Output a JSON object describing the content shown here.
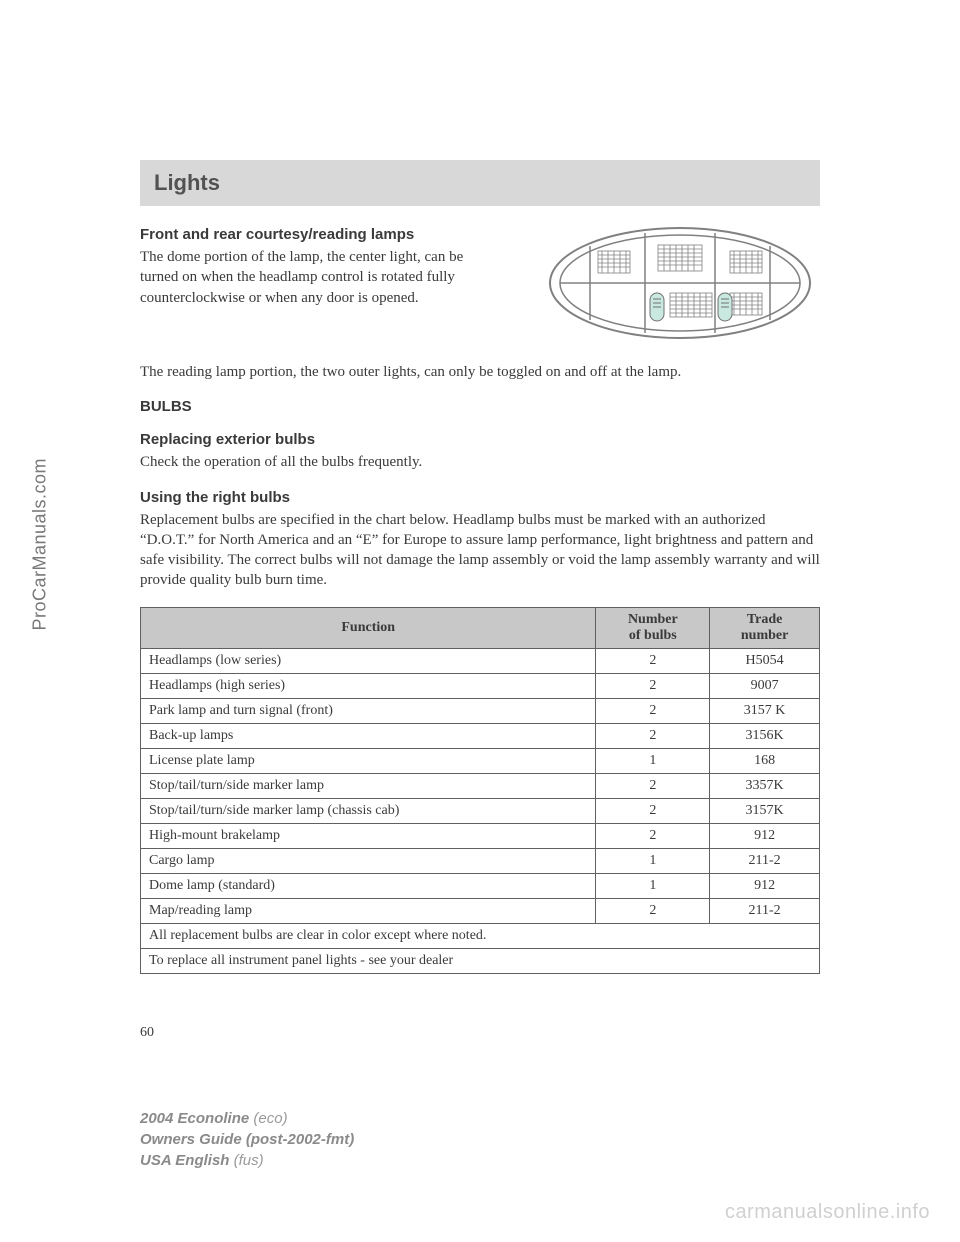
{
  "sidebar": {
    "watermark": "ProCarManuals.com"
  },
  "header": {
    "title": "Lights"
  },
  "section1": {
    "heading": "Front and rear courtesy/reading lamps",
    "para1": "The dome portion of the lamp, the center light, can be turned on when the headlamp control is rotated fully counterclockwise or when any door is opened.",
    "para2": "The reading lamp portion, the two outer lights, can only be toggled on and off at the lamp."
  },
  "section2": {
    "heading": "BULBS"
  },
  "section3": {
    "heading": "Replacing exterior bulbs",
    "para1": "Check the operation of all the bulbs frequently."
  },
  "section4": {
    "heading": "Using the right bulbs",
    "para1": "Replacement bulbs are specified in the chart below. Headlamp bulbs must be marked with an authorized “D.O.T.” for North America and an “E” for Europe to assure lamp performance, light brightness and pattern and safe visibility. The correct bulbs will not damage the lamp assembly or void the lamp assembly warranty and will provide quality bulb burn time."
  },
  "table": {
    "headers": {
      "col1": "Function",
      "col2_line1": "Number",
      "col2_line2": "of bulbs",
      "col3_line1": "Trade",
      "col3_line2": "number"
    },
    "rows": [
      {
        "func": "Headlamps (low series)",
        "num": "2",
        "trade": "H5054"
      },
      {
        "func": "Headlamps (high series)",
        "num": "2",
        "trade": "9007"
      },
      {
        "func": "Park lamp and turn signal (front)",
        "num": "2",
        "trade": "3157 K"
      },
      {
        "func": "Back-up lamps",
        "num": "2",
        "trade": "3156K"
      },
      {
        "func": "License plate lamp",
        "num": "1",
        "trade": "168"
      },
      {
        "func": "Stop/tail/turn/side marker lamp",
        "num": "2",
        "trade": "3357K"
      },
      {
        "func": "Stop/tail/turn/side marker lamp (chassis cab)",
        "num": "2",
        "trade": "3157K"
      },
      {
        "func": "High-mount brakelamp",
        "num": "2",
        "trade": "912"
      },
      {
        "func": "Cargo lamp",
        "num": "1",
        "trade": "211-2"
      },
      {
        "func": "Dome lamp (standard)",
        "num": "1",
        "trade": "912"
      },
      {
        "func": "Map/reading lamp",
        "num": "2",
        "trade": "211-2"
      }
    ],
    "footer1": "All replacement bulbs are clear in color except where noted.",
    "footer2": "To replace all instrument panel lights - see your dealer"
  },
  "pageNumber": "60",
  "footer": {
    "line1_bold": "2004 Econoline",
    "line1_italic": "(eco)",
    "line2_bold": "Owners Guide (post-2002-fmt)",
    "line3_bold": "USA English",
    "line3_italic": "(fus)"
  },
  "bottomWatermark": "carmanualsonline.info",
  "colors": {
    "header_bg": "#d8d8d8",
    "table_header_bg": "#c8c8c8",
    "border": "#606060",
    "text": "#3a3a3a",
    "sidebar_text": "#787878",
    "watermark": "#d0d0d0"
  }
}
